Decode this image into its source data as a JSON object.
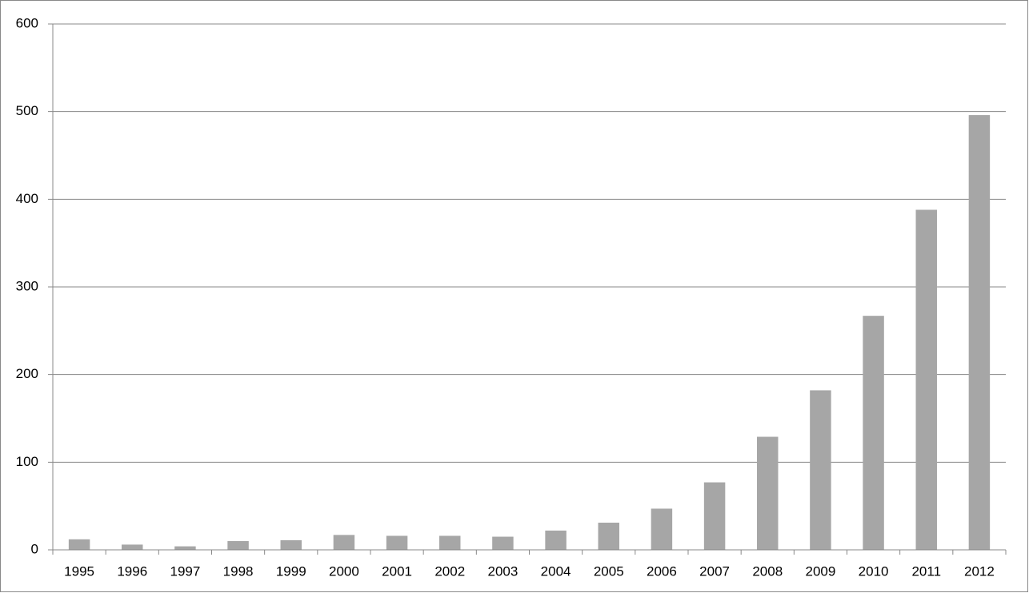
{
  "chart_data": {
    "type": "bar",
    "categories": [
      "1995",
      "1996",
      "1997",
      "1998",
      "1999",
      "2000",
      "2001",
      "2002",
      "2003",
      "2004",
      "2005",
      "2006",
      "2007",
      "2008",
      "2009",
      "2010",
      "2011",
      "2012"
    ],
    "values": [
      12,
      6,
      4,
      10,
      11,
      17,
      16,
      16,
      15,
      22,
      31,
      47,
      77,
      129,
      182,
      267,
      388,
      496
    ],
    "color": "#a6a6a6",
    "ylim": [
      0,
      600
    ],
    "yticks": [
      0,
      100,
      200,
      300,
      400,
      500,
      600
    ],
    "grid": true
  }
}
